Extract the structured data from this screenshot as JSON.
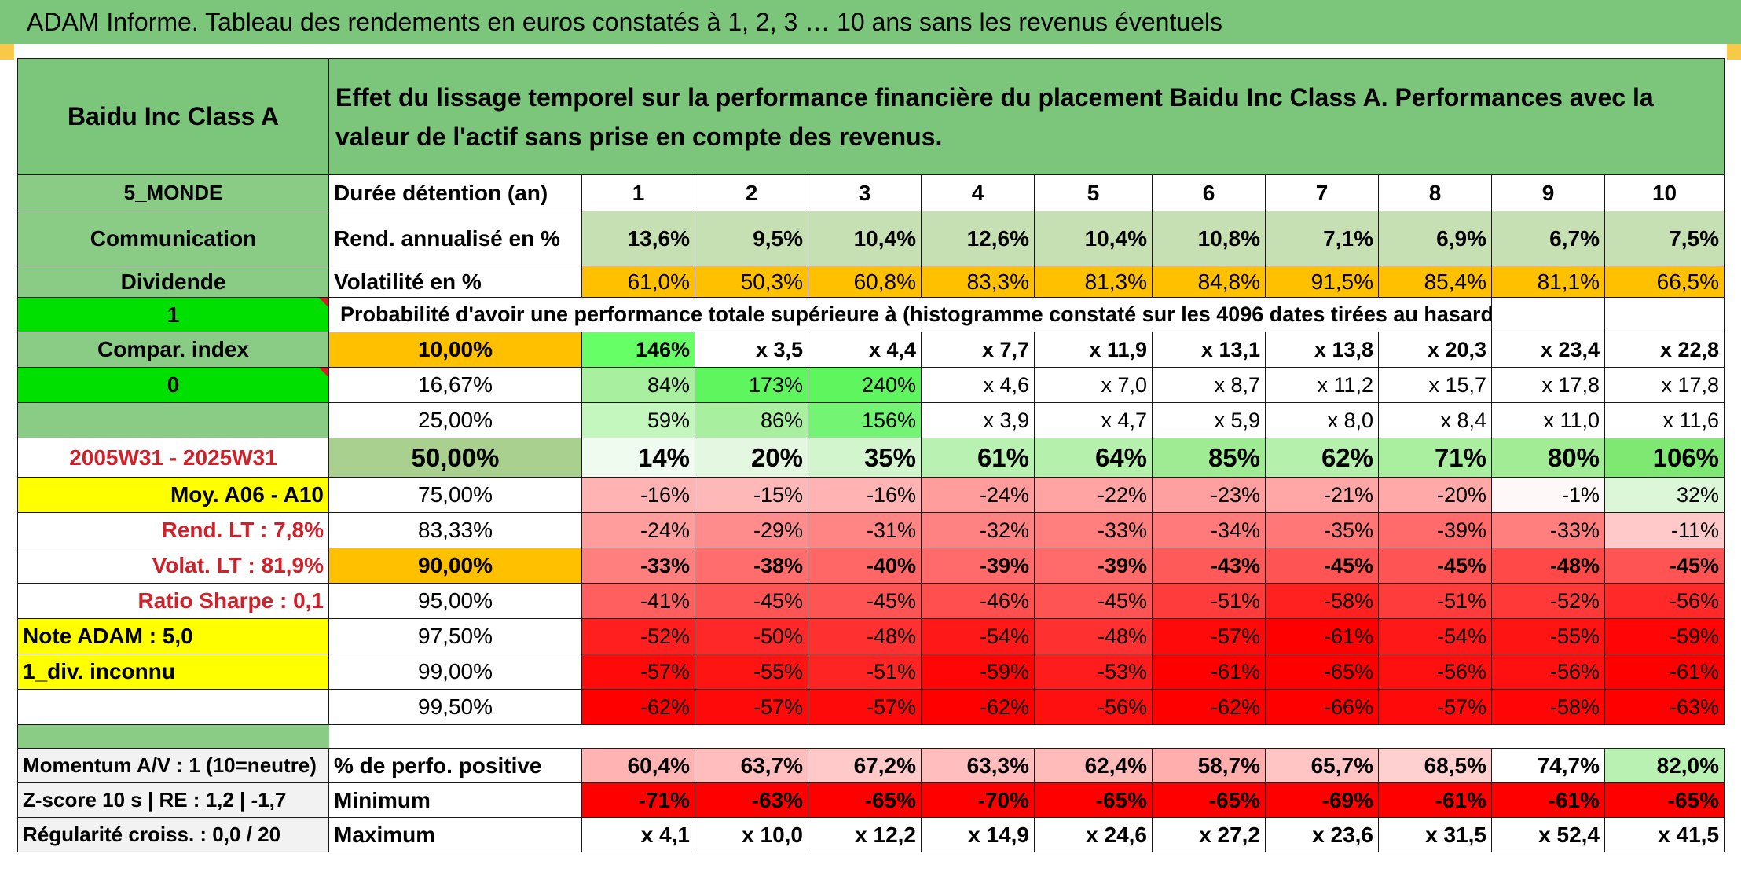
{
  "title": "ADAM Informe. Tableau des rendements en euros constatés à 1, 2, 3 … 10 ans sans les revenus éventuels",
  "asset": "Baidu Inc Class A",
  "headline": "Effet du lissage temporel sur la performance financière du placement Baidu Inc Class A. Performances avec la valeur de l'actif sans prise en compte des revenus.",
  "side": {
    "zone": "5_MONDE",
    "sector": "Communication",
    "dividend_label": "Dividende",
    "dividend_value": "1",
    "compar_index": "Compar. index",
    "compar_value": "0",
    "period": "2005W31 - 2025W31",
    "moy": "Moy. A06 - A10",
    "rend_lt": "Rend. LT :   7,8%",
    "volat_lt": "Volat. LT :   81,9%",
    "sharpe": "Ratio Sharpe :    0,1",
    "note": "Note ADAM : 5,0",
    "div_inconnu": "1_div. inconnu",
    "momentum": "Momentum A/V : 1 (10=neutre)",
    "zscore": "Z-score 10 s | RE : 1,2 | -1,7",
    "regularite": "Régularité croiss. : 0,0 / 20"
  },
  "rows_labels": {
    "duree": "Durée détention (an)",
    "rend": "Rend. annualisé en %",
    "vol": "Volatilité en %",
    "proba": "Probabilité d'avoir une performance totale supérieure à (histogramme constaté sur les 4096 dates tirées au hasard)",
    "pos": "% de perfo. positive",
    "min": "Minimum",
    "max": "Maximum"
  },
  "years": [
    "1",
    "2",
    "3",
    "4",
    "5",
    "6",
    "7",
    "8",
    "9",
    "10"
  ],
  "rend": [
    "13,6%",
    "9,5%",
    "10,4%",
    "12,6%",
    "10,4%",
    "10,8%",
    "7,1%",
    "6,9%",
    "6,7%",
    "7,5%"
  ],
  "vol": [
    "61,0%",
    "50,3%",
    "60,8%",
    "83,3%",
    "81,3%",
    "84,8%",
    "91,5%",
    "85,4%",
    "81,1%",
    "66,5%"
  ],
  "pct_rows": [
    {
      "p": "10,00%",
      "vals": [
        "146%",
        "x 3,5",
        "x 4,4",
        "x 7,7",
        "x 11,9",
        "x 13,1",
        "x 13,8",
        "x 20,3",
        "x 23,4",
        "x 22,8"
      ],
      "bg": [
        "#66ff66",
        "#fff",
        "#fff",
        "#fff",
        "#fff",
        "#fff",
        "#fff",
        "#fff",
        "#fff",
        "#fff"
      ]
    },
    {
      "p": "16,67%",
      "vals": [
        "84%",
        "173%",
        "240%",
        "x 4,6",
        "x 7,0",
        "x 8,7",
        "x 11,2",
        "x 15,7",
        "x 17,8",
        "x 17,8"
      ],
      "bg": [
        "#a8f0a0",
        "#5ef55e",
        "#5ef55e",
        "#fff",
        "#fff",
        "#fff",
        "#fff",
        "#fff",
        "#fff",
        "#fff"
      ]
    },
    {
      "p": "25,00%",
      "vals": [
        "59%",
        "86%",
        "156%",
        "x 3,9",
        "x 4,7",
        "x 5,9",
        "x 8,0",
        "x 8,4",
        "x 11,0",
        "x 11,6"
      ],
      "bg": [
        "#c3f7be",
        "#a8f0a0",
        "#73f573",
        "#fff",
        "#fff",
        "#fff",
        "#fff",
        "#fff",
        "#fff",
        "#fff"
      ]
    },
    {
      "p": "50,00%",
      "vals": [
        "14%",
        "20%",
        "35%",
        "61%",
        "64%",
        "85%",
        "62%",
        "71%",
        "80%",
        "106%"
      ],
      "bg": [
        "#effbee",
        "#e4f8e1",
        "#d3f5ce",
        "#b8f1b1",
        "#b5f0ad",
        "#9eeb93",
        "#b5f0ad",
        "#aaee9f",
        "#a1ec95",
        "#7fe872"
      ]
    },
    {
      "p": "75,00%",
      "vals": [
        "-16%",
        "-15%",
        "-16%",
        "-24%",
        "-22%",
        "-23%",
        "-21%",
        "-20%",
        "-1%",
        "32%"
      ],
      "bg": [
        "#ffb3b3",
        "#ffb8b8",
        "#ffb3b3",
        "#ff9d9d",
        "#ffa3a3",
        "#ffa0a0",
        "#ffa6a6",
        "#ffa9a9",
        "#fff8f8",
        "#dcf7d8"
      ]
    },
    {
      "p": "83,33%",
      "vals": [
        "-24%",
        "-29%",
        "-31%",
        "-32%",
        "-33%",
        "-34%",
        "-35%",
        "-39%",
        "-33%",
        "-11%"
      ],
      "bg": [
        "#ff9d9d",
        "#ff8c8c",
        "#ff8585",
        "#ff8282",
        "#ff7f7f",
        "#ff7b7b",
        "#ff7777",
        "#ff6a6a",
        "#ff7f7f",
        "#ffc9c9"
      ]
    },
    {
      "p": "90,00%",
      "vals": [
        "-33%",
        "-38%",
        "-40%",
        "-39%",
        "-39%",
        "-43%",
        "-45%",
        "-45%",
        "-48%",
        "-45%"
      ],
      "bg": [
        "#ff7f7f",
        "#ff6d6d",
        "#ff6666",
        "#ff6a6a",
        "#ff6a6a",
        "#ff5a5a",
        "#ff5454",
        "#ff5454",
        "#ff4848",
        "#ff5454"
      ]
    },
    {
      "p": "95,00%",
      "vals": [
        "-41%",
        "-45%",
        "-45%",
        "-46%",
        "-45%",
        "-51%",
        "-58%",
        "-51%",
        "-52%",
        "-56%"
      ],
      "bg": [
        "#ff5f5f",
        "#ff5454",
        "#ff5454",
        "#ff4f4f",
        "#ff5454",
        "#ff3c3c",
        "#ff2020",
        "#ff3c3c",
        "#ff3838",
        "#ff2929"
      ]
    },
    {
      "p": "97,50%",
      "vals": [
        "-52%",
        "-50%",
        "-48%",
        "-54%",
        "-48%",
        "-57%",
        "-61%",
        "-54%",
        "-55%",
        "-59%"
      ],
      "bg": [
        "#ff1f1f",
        "#ff2828",
        "#ff3030",
        "#ff1818",
        "#ff3030",
        "#ff0a0a",
        "#ff0000",
        "#ff1818",
        "#ff1414",
        "#ff0505"
      ]
    },
    {
      "p": "99,00%",
      "vals": [
        "-57%",
        "-55%",
        "-51%",
        "-59%",
        "-53%",
        "-61%",
        "-65%",
        "-56%",
        "-56%",
        "-61%"
      ],
      "bg": [
        "#ff0a0a",
        "#ff1414",
        "#ff2424",
        "#ff0505",
        "#ff1c1c",
        "#ff0000",
        "#ff0000",
        "#ff1010",
        "#ff1010",
        "#ff0000"
      ]
    },
    {
      "p": "99,50%",
      "vals": [
        "-62%",
        "-57%",
        "-57%",
        "-62%",
        "-56%",
        "-62%",
        "-66%",
        "-57%",
        "-58%",
        "-63%"
      ],
      "bg": [
        "#ff0000",
        "#ff0a0a",
        "#ff0a0a",
        "#ff0000",
        "#ff1010",
        "#ff0000",
        "#ff0000",
        "#ff0a0a",
        "#ff0505",
        "#ff0000"
      ]
    }
  ],
  "pos": [
    "60,4%",
    "63,7%",
    "67,2%",
    "63,3%",
    "62,4%",
    "58,7%",
    "65,7%",
    "68,5%",
    "74,7%",
    "82,0%"
  ],
  "pos_bg": [
    "#ffb3b3",
    "#ffbdbd",
    "#ffc9c9",
    "#ffbdbd",
    "#ffbaba",
    "#ffadad",
    "#ffc5c5",
    "#ffd0d0",
    "#ffffff",
    "#b8f1b1"
  ],
  "min": [
    "-71%",
    "-63%",
    "-65%",
    "-70%",
    "-65%",
    "-65%",
    "-69%",
    "-61%",
    "-61%",
    "-65%"
  ],
  "max": [
    "x 4,1",
    "x 10,0",
    "x 12,2",
    "x 14,9",
    "x 24,6",
    "x 27,2",
    "x 23,6",
    "x 31,5",
    "x 52,4",
    "x 41,5"
  ],
  "colors": {
    "header_green": "#7cc67b",
    "orange": "#ffc000",
    "yellow": "#ffff00",
    "bright_green": "#00e000",
    "red": "#ff0000"
  }
}
